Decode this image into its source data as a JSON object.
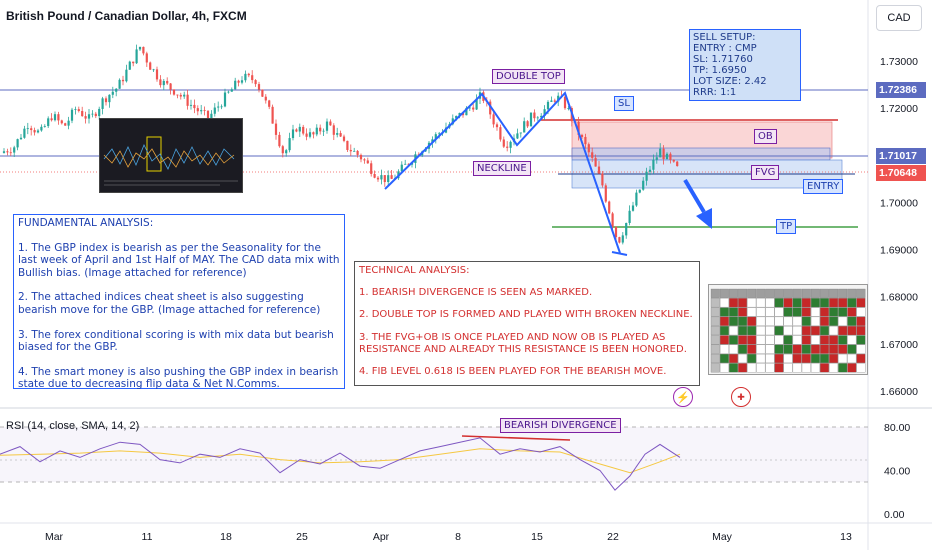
{
  "header": {
    "title": "British Pound / Canadian Dollar, 4h, FXCM",
    "currency": "CAD"
  },
  "colors": {
    "bull": "#26a69a",
    "bear": "#ef5350",
    "trend_blue": "#2962ff",
    "purple": "#7b1fa2",
    "rsi_line": "#7e57c2",
    "rsi_ma": "#f5c842",
    "red_line": "#d32f2f",
    "green_line": "#43a047"
  },
  "chart_data": [
    {
      "type": "candlestick",
      "title": "British Pound / Canadian Dollar, 4h, FXCM",
      "y_ticks": [
        "1.73000",
        "1.72000",
        "1.70000",
        "1.69000",
        "1.68000",
        "1.67000",
        "1.66000"
      ],
      "ylim": [
        1.654,
        1.738
      ],
      "x_ticks": [
        "Mar",
        "11",
        "18",
        "25",
        "Apr",
        "8",
        "15",
        "22",
        "May",
        "13"
      ],
      "price_labels": {
        "upper": "1.72386",
        "neckline": "1.71017",
        "current": "1.70648"
      },
      "series_close_path": [
        [
          0,
          1.7105
        ],
        [
          14,
          1.7118
        ],
        [
          28,
          1.7168
        ],
        [
          40,
          1.7145
        ],
        [
          52,
          1.7185
        ],
        [
          64,
          1.716
        ],
        [
          76,
          1.72
        ],
        [
          90,
          1.7175
        ],
        [
          104,
          1.722
        ],
        [
          118,
          1.7245
        ],
        [
          132,
          1.73
        ],
        [
          140,
          1.733
        ],
        [
          150,
          1.729
        ],
        [
          162,
          1.7255
        ],
        [
          176,
          1.7235
        ],
        [
          192,
          1.7205
        ],
        [
          208,
          1.7178
        ],
        [
          226,
          1.7225
        ],
        [
          242,
          1.7265
        ],
        [
          256,
          1.726
        ],
        [
          270,
          1.719
        ],
        [
          284,
          1.71
        ],
        [
          296,
          1.716
        ],
        [
          312,
          1.714
        ],
        [
          328,
          1.7168
        ],
        [
          344,
          1.7122
        ],
        [
          360,
          1.7098
        ],
        [
          376,
          1.706
        ],
        [
          390,
          1.7045
        ],
        [
          404,
          1.7075
        ],
        [
          420,
          1.7112
        ],
        [
          438,
          1.7145
        ],
        [
          456,
          1.7178
        ],
        [
          472,
          1.7205
        ],
        [
          482,
          1.7228
        ],
        [
          492,
          1.718
        ],
        [
          505,
          1.7122
        ],
        [
          518,
          1.715
        ],
        [
          532,
          1.7182
        ],
        [
          546,
          1.7198
        ],
        [
          556,
          1.7225
        ],
        [
          566,
          1.7205
        ],
        [
          576,
          1.7158
        ],
        [
          590,
          1.71
        ],
        [
          602,
          1.704
        ],
        [
          612,
          1.696
        ],
        [
          618,
          1.6915
        ],
        [
          626,
          1.6955
        ],
        [
          636,
          1.701
        ],
        [
          648,
          1.7065
        ],
        [
          660,
          1.711
        ],
        [
          670,
          1.7085
        ],
        [
          680,
          1.7065
        ]
      ],
      "annotations": {
        "double_top": "DOUBLE TOP",
        "neckline": "NECKLINE",
        "sl": "SL",
        "ob": "OB",
        "fvg": "FVG",
        "entry": "ENTRY",
        "tp": "TP"
      }
    },
    {
      "type": "line",
      "title": "RSI (14, close, SMA, 14, 2)",
      "y_ticks": [
        "80.00",
        "40.00",
        "0.00"
      ],
      "ylim": [
        0,
        100
      ],
      "series": [
        {
          "name": "RSI",
          "values": [
            [
              0,
              55
            ],
            [
              20,
              62
            ],
            [
              40,
              48
            ],
            [
              60,
              58
            ],
            [
              80,
              52
            ],
            [
              100,
              60
            ],
            [
              120,
              66
            ],
            [
              140,
              64
            ],
            [
              160,
              50
            ],
            [
              180,
              47
            ],
            [
              200,
              55
            ],
            [
              220,
              52
            ],
            [
              240,
              60
            ],
            [
              260,
              56
            ],
            [
              280,
              38
            ],
            [
              300,
              50
            ],
            [
              320,
              46
            ],
            [
              340,
              56
            ],
            [
              360,
              44
            ],
            [
              380,
              42
            ],
            [
              400,
              50
            ],
            [
              420,
              58
            ],
            [
              440,
              62
            ],
            [
              460,
              66
            ],
            [
              480,
              70
            ],
            [
              500,
              55
            ],
            [
              520,
              60
            ],
            [
              540,
              57
            ],
            [
              560,
              62
            ],
            [
              580,
              50
            ],
            [
              600,
              40
            ],
            [
              615,
              22
            ],
            [
              630,
              35
            ],
            [
              645,
              55
            ],
            [
              660,
              64
            ],
            [
              680,
              52
            ]
          ]
        },
        {
          "name": "SMA",
          "values": [
            [
              0,
              54
            ],
            [
              40,
              55
            ],
            [
              80,
              56
            ],
            [
              120,
              58
            ],
            [
              160,
              56
            ],
            [
              200,
              52
            ],
            [
              240,
              55
            ],
            [
              280,
              50
            ],
            [
              320,
              47
            ],
            [
              360,
              48
            ],
            [
              400,
              50
            ],
            [
              440,
              55
            ],
            [
              480,
              60
            ],
            [
              520,
              58
            ],
            [
              560,
              57
            ],
            [
              600,
              46
            ],
            [
              630,
              38
            ],
            [
              660,
              48
            ],
            [
              680,
              55
            ]
          ]
        }
      ],
      "divergence_label": "BEARISH DIVERGENCE"
    }
  ],
  "sell_setup": [
    "SELL SETUP:",
    "ENTRY : CMP",
    "SL: 1.71760",
    "TP: 1.6950",
    "LOT SIZE: 2.42",
    "RRR: 1:1"
  ],
  "fundamental": [
    "FUNDAMENTAL ANALYSIS:",
    "1.   The GBP index is bearish as per the Seasonality for the last week of April and 1st Half of MAY. The CAD data mix with Bullish bias. (Image attached for reference)",
    "2.  The attached indices cheat sheet is also suggesting bearish move for the GBP. (Image attached for reference)",
    "3.  The forex conditional scoring is with mix data but bearish biased for the GBP.",
    "4.  The smart money is also pushing the GBP index in bearish state due to decreasing flip data & Net N.Comms."
  ],
  "technical": [
    "TECHNICAL ANALYSIS:",
    "1. BEARISH DIVERGENCE IS SEEN AS MARKED.",
    "2. DOUBLE TOP IS FORMED AND PLAYED WITH BROKEN NECKLINE.",
    "3. THE FVG+OB IS ONCE PLAYED AND NOW OB IS PLAYED AS RESISTANCE AND ALREADY THIS RESISTANCE IS BEEN HONORED.",
    "4. FIB LEVEL 0.618 IS BEEN PLAYED FOR THE BEARISH MOVE."
  ],
  "icons": {
    "lightning": "lightning-icon",
    "flag": "canada-flag-icon"
  }
}
